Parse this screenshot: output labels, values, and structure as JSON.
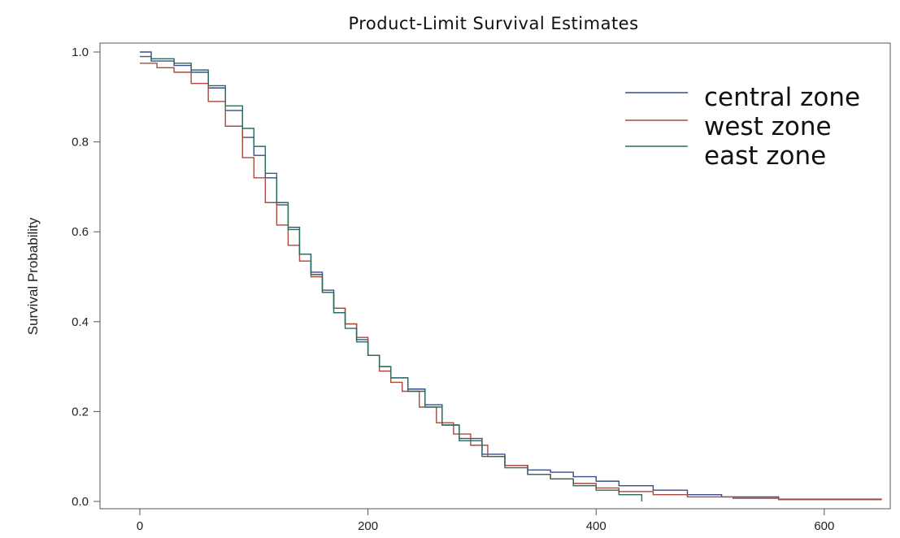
{
  "chart_data": {
    "type": "line",
    "title": "Product-Limit Survival Estimates",
    "xlabel": "",
    "ylabel": "Survival Probability",
    "xlim": [
      0,
      650
    ],
    "ylim": [
      0,
      1.0
    ],
    "x_ticks": [
      0,
      200,
      400,
      600
    ],
    "y_ticks": [
      0.0,
      0.2,
      0.4,
      0.6,
      0.8,
      1.0
    ],
    "x_tick_labels": [
      "0",
      "200",
      "400",
      "600"
    ],
    "y_tick_labels": [
      "0.0",
      "0.2",
      "0.4",
      "0.6",
      "0.8",
      "1.0"
    ],
    "grid": false,
    "step": true,
    "legend_position": "top-right",
    "series": [
      {
        "name": "central zone",
        "color": "#3a4a8c",
        "points": [
          [
            0,
            1.0
          ],
          [
            10,
            0.98
          ],
          [
            30,
            0.97
          ],
          [
            45,
            0.955
          ],
          [
            60,
            0.92
          ],
          [
            75,
            0.87
          ],
          [
            90,
            0.81
          ],
          [
            100,
            0.77
          ],
          [
            110,
            0.72
          ],
          [
            120,
            0.66
          ],
          [
            130,
            0.61
          ],
          [
            140,
            0.55
          ],
          [
            150,
            0.51
          ],
          [
            160,
            0.47
          ],
          [
            170,
            0.43
          ],
          [
            180,
            0.395
          ],
          [
            190,
            0.36
          ],
          [
            200,
            0.325
          ],
          [
            210,
            0.3
          ],
          [
            220,
            0.275
          ],
          [
            235,
            0.25
          ],
          [
            250,
            0.215
          ],
          [
            265,
            0.17
          ],
          [
            280,
            0.14
          ],
          [
            300,
            0.105
          ],
          [
            320,
            0.08
          ],
          [
            340,
            0.07
          ],
          [
            360,
            0.065
          ],
          [
            380,
            0.055
          ],
          [
            400,
            0.045
          ],
          [
            420,
            0.035
          ],
          [
            450,
            0.025
          ],
          [
            480,
            0.015
          ],
          [
            510,
            0.01
          ],
          [
            560,
            0.005
          ],
          [
            650,
            0.004
          ]
        ]
      },
      {
        "name": "west zone",
        "color": "#a84a3c",
        "points": [
          [
            0,
            0.975
          ],
          [
            15,
            0.965
          ],
          [
            30,
            0.955
          ],
          [
            45,
            0.93
          ],
          [
            60,
            0.89
          ],
          [
            75,
            0.835
          ],
          [
            90,
            0.765
          ],
          [
            100,
            0.72
          ],
          [
            110,
            0.665
          ],
          [
            120,
            0.615
          ],
          [
            130,
            0.57
          ],
          [
            140,
            0.535
          ],
          [
            150,
            0.5
          ],
          [
            160,
            0.465
          ],
          [
            170,
            0.43
          ],
          [
            180,
            0.395
          ],
          [
            190,
            0.365
          ],
          [
            200,
            0.325
          ],
          [
            210,
            0.29
          ],
          [
            220,
            0.265
          ],
          [
            230,
            0.245
          ],
          [
            245,
            0.21
          ],
          [
            260,
            0.175
          ],
          [
            275,
            0.15
          ],
          [
            290,
            0.125
          ],
          [
            305,
            0.1
          ],
          [
            320,
            0.08
          ],
          [
            340,
            0.06
          ],
          [
            360,
            0.05
          ],
          [
            380,
            0.04
          ],
          [
            400,
            0.03
          ],
          [
            420,
            0.022
          ],
          [
            450,
            0.015
          ],
          [
            480,
            0.01
          ],
          [
            520,
            0.007
          ],
          [
            560,
            0.004
          ],
          [
            650,
            0.003
          ]
        ]
      },
      {
        "name": "east zone",
        "color": "#2f6a5e",
        "points": [
          [
            0,
            0.99
          ],
          [
            10,
            0.985
          ],
          [
            30,
            0.975
          ],
          [
            45,
            0.96
          ],
          [
            60,
            0.925
          ],
          [
            75,
            0.88
          ],
          [
            90,
            0.83
          ],
          [
            100,
            0.79
          ],
          [
            110,
            0.73
          ],
          [
            120,
            0.665
          ],
          [
            130,
            0.605
          ],
          [
            140,
            0.55
          ],
          [
            150,
            0.505
          ],
          [
            160,
            0.465
          ],
          [
            170,
            0.42
          ],
          [
            180,
            0.385
          ],
          [
            190,
            0.355
          ],
          [
            200,
            0.325
          ],
          [
            210,
            0.3
          ],
          [
            220,
            0.275
          ],
          [
            235,
            0.245
          ],
          [
            250,
            0.21
          ],
          [
            265,
            0.17
          ],
          [
            280,
            0.135
          ],
          [
            300,
            0.1
          ],
          [
            320,
            0.075
          ],
          [
            340,
            0.06
          ],
          [
            360,
            0.05
          ],
          [
            380,
            0.035
          ],
          [
            400,
            0.025
          ],
          [
            420,
            0.015
          ],
          [
            440,
            0.0
          ]
        ]
      }
    ]
  }
}
